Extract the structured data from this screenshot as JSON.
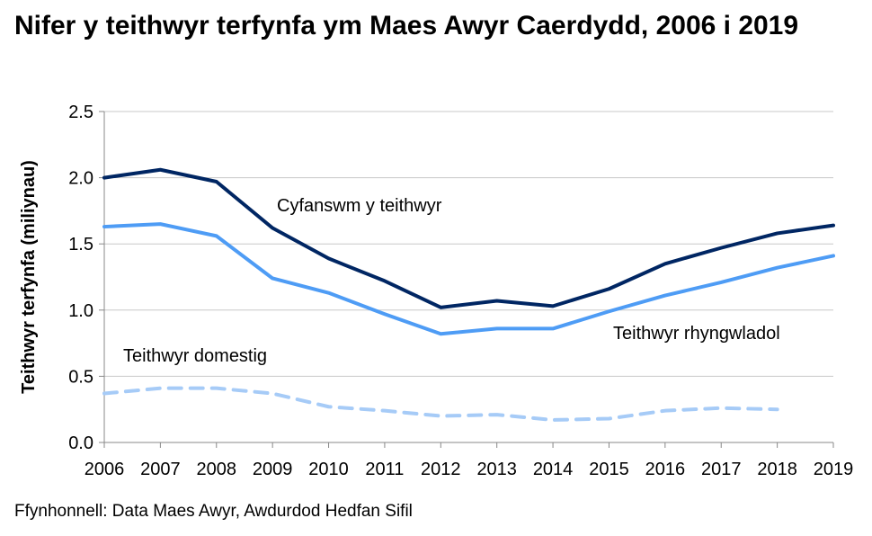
{
  "chart_data": {
    "type": "line",
    "title": "Nifer y teithwyr terfynfa ym Maes Awyr Caerdydd, 2006 i 2019",
    "xlabel": "",
    "ylabel": "Teithwyr terfynfa (miliynau)",
    "ylim": [
      0,
      2.5
    ],
    "yticks": [
      "0.0",
      "0.5",
      "1.0",
      "1.5",
      "2.0",
      "2.5"
    ],
    "categories": [
      "2006",
      "2007",
      "2008",
      "2009",
      "2010",
      "2011",
      "2012",
      "2013",
      "2014",
      "2015",
      "2016",
      "2017",
      "2018",
      "2019"
    ],
    "grid": true,
    "series": [
      {
        "name": "Cyfanswm y teithwyr",
        "color": "#002663",
        "dash": false,
        "values": [
          2.0,
          2.06,
          1.97,
          1.62,
          1.39,
          1.22,
          1.02,
          1.07,
          1.03,
          1.16,
          1.35,
          1.47,
          1.58,
          1.64
        ]
      },
      {
        "name": "Teithwyr rhyngwladol",
        "color": "#4e9cf5",
        "dash": false,
        "values": [
          1.63,
          1.65,
          1.56,
          1.24,
          1.13,
          0.97,
          0.82,
          0.86,
          0.86,
          0.99,
          1.11,
          1.21,
          1.32,
          1.41
        ]
      },
      {
        "name": "Teithwyr domestig",
        "color": "#a6cbf7",
        "dash": true,
        "values": [
          0.37,
          0.41,
          0.41,
          0.37,
          0.27,
          0.24,
          0.2,
          0.21,
          0.17,
          0.18,
          0.24,
          0.26,
          0.25,
          null
        ]
      }
    ]
  },
  "source": "Ffynhonnell: Data Maes Awyr, Awdurdod Hedfan Sifil"
}
